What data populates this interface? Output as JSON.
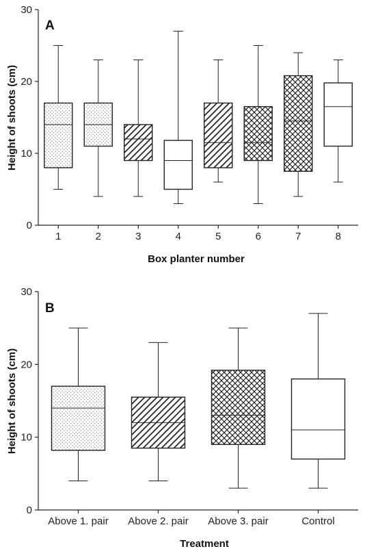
{
  "chart_data": [
    {
      "type": "box",
      "panel_label": "A",
      "xlabel": "Box planter number",
      "ylabel": "Height of shoots (cm)",
      "ylim": [
        0,
        30
      ],
      "yticks": [
        "0",
        "10",
        "20",
        "30"
      ],
      "grid": false,
      "categories": [
        "1",
        "2",
        "3",
        "4",
        "5",
        "6",
        "7",
        "8"
      ],
      "boxes": [
        {
          "min": 5,
          "q1": 8,
          "median": 14,
          "q3": 17,
          "max": 25,
          "pattern": "dots"
        },
        {
          "min": 4,
          "q1": 11,
          "median": 14,
          "q3": 17,
          "max": 23,
          "pattern": "dots"
        },
        {
          "min": 4,
          "q1": 9,
          "median": 12,
          "q3": 14,
          "max": 23,
          "pattern": "diagonal"
        },
        {
          "min": 3,
          "q1": 5,
          "median": 9,
          "q3": 11.8,
          "max": 27,
          "pattern": "none"
        },
        {
          "min": 6,
          "q1": 8,
          "median": 11.5,
          "q3": 17,
          "max": 23,
          "pattern": "diagonal"
        },
        {
          "min": 3,
          "q1": 9,
          "median": 11.5,
          "q3": 16.5,
          "max": 25,
          "pattern": "crosshatch"
        },
        {
          "min": 4,
          "q1": 7.5,
          "median": 14.5,
          "q3": 20.8,
          "max": 24,
          "pattern": "crosshatch"
        },
        {
          "min": 6,
          "q1": 11,
          "median": 16.5,
          "q3": 19.8,
          "max": 23,
          "pattern": "none"
        }
      ]
    },
    {
      "type": "box",
      "panel_label": "B",
      "xlabel": "Treatment",
      "ylabel": "Height of shoots (cm)",
      "ylim": [
        0,
        30
      ],
      "yticks": [
        "0",
        "10",
        "20",
        "30"
      ],
      "grid": false,
      "categories": [
        "Above 1. pair",
        "Above 2. pair",
        "Above 3. pair",
        "Control"
      ],
      "boxes": [
        {
          "min": 4,
          "q1": 8.2,
          "median": 14,
          "q3": 17,
          "max": 25,
          "pattern": "dots"
        },
        {
          "min": 4,
          "q1": 8.5,
          "median": 12,
          "q3": 15.5,
          "max": 23,
          "pattern": "diagonal"
        },
        {
          "min": 3,
          "q1": 9,
          "median": 13,
          "q3": 19.2,
          "max": 25,
          "pattern": "crosshatch"
        },
        {
          "min": 3,
          "q1": 7,
          "median": 11,
          "q3": 18,
          "max": 27,
          "pattern": "none"
        }
      ]
    }
  ]
}
